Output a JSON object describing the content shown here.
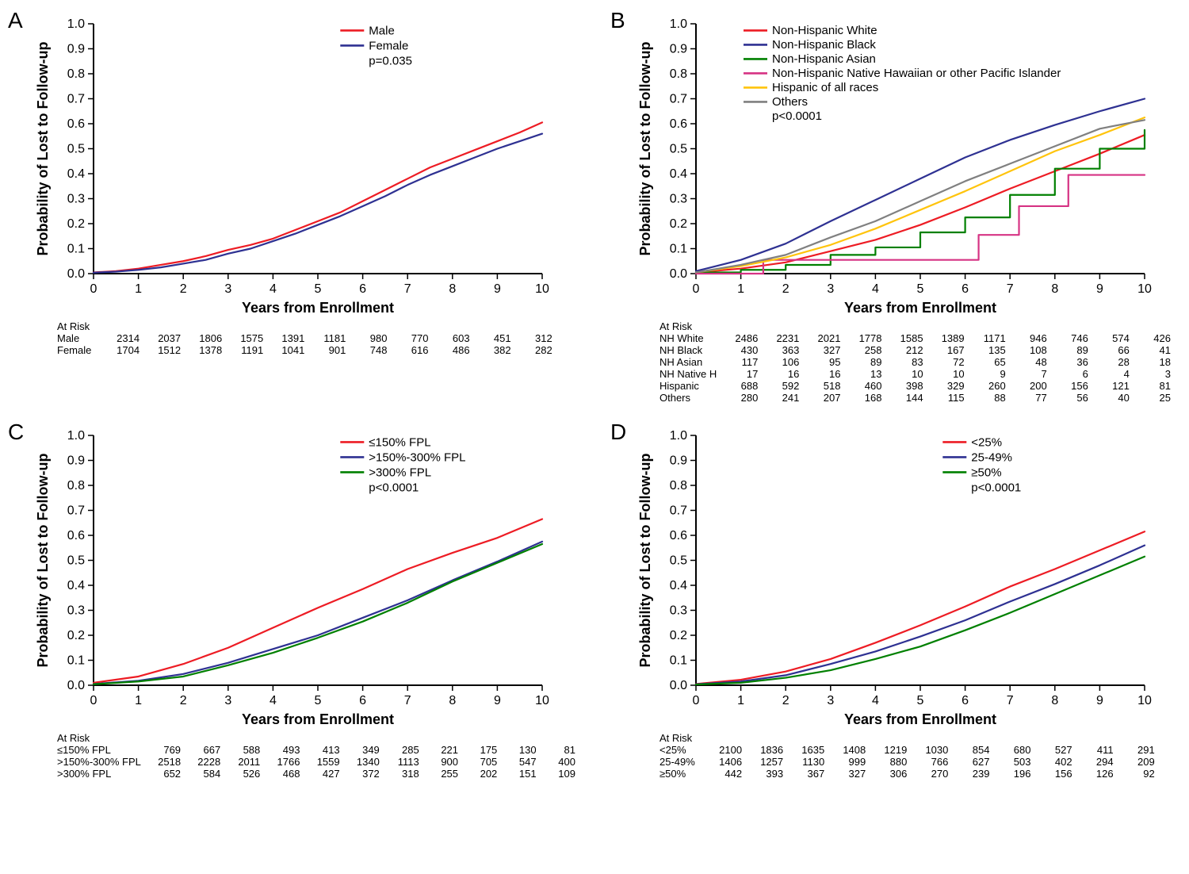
{
  "global": {
    "bg_color": "#ffffff",
    "axis_color": "#000000",
    "font": "Arial",
    "line_width": 2.2
  },
  "panels": [
    {
      "letter": "A",
      "type": "line",
      "xlabel": "Years from Enrollment",
      "ylabel": "Probability of Lost to Follow-up",
      "xlim": [
        0,
        10
      ],
      "ylim": [
        0,
        1.0
      ],
      "xtick_step": 1,
      "ytick_step": 0.1,
      "axis_fontsize": 18,
      "tick_fontsize": 16,
      "legend_fontsize": 15,
      "legend_pos": "top-right",
      "pvalue": "p=0.035",
      "series": [
        {
          "name": "Male",
          "color": "#ed1c24",
          "x": [
            0,
            0.5,
            1,
            1.5,
            2,
            2.5,
            3,
            3.5,
            4,
            4.5,
            5,
            5.5,
            6,
            6.5,
            7,
            7.5,
            8,
            8.5,
            9,
            9.5,
            10
          ],
          "y": [
            0.005,
            0.01,
            0.02,
            0.035,
            0.05,
            0.07,
            0.095,
            0.115,
            0.14,
            0.175,
            0.21,
            0.245,
            0.29,
            0.335,
            0.38,
            0.425,
            0.46,
            0.495,
            0.53,
            0.565,
            0.605
          ]
        },
        {
          "name": "Female",
          "color": "#2e3192",
          "x": [
            0,
            0.5,
            1,
            1.5,
            2,
            2.5,
            3,
            3.5,
            4,
            4.5,
            5,
            5.5,
            6,
            6.5,
            7,
            7.5,
            8,
            8.5,
            9,
            9.5,
            10
          ],
          "y": [
            0.004,
            0.008,
            0.015,
            0.025,
            0.04,
            0.055,
            0.08,
            0.1,
            0.13,
            0.16,
            0.195,
            0.23,
            0.27,
            0.31,
            0.355,
            0.395,
            0.43,
            0.465,
            0.5,
            0.53,
            0.56
          ]
        }
      ],
      "atrisk_title": "At Risk",
      "atrisk_x": [
        0,
        1,
        2,
        3,
        4,
        5,
        6,
        7,
        8,
        9,
        10
      ],
      "atrisk": [
        {
          "label": "Male",
          "values": [
            2314,
            2037,
            1806,
            1575,
            1391,
            1181,
            980,
            770,
            603,
            451,
            312
          ]
        },
        {
          "label": "Female",
          "values": [
            1704,
            1512,
            1378,
            1191,
            1041,
            901,
            748,
            616,
            486,
            382,
            282
          ]
        }
      ]
    },
    {
      "letter": "B",
      "type": "line-step",
      "xlabel": "Years from Enrollment",
      "ylabel": "Probability of Lost to Follow-up",
      "xlim": [
        0,
        10
      ],
      "ylim": [
        0,
        1.0
      ],
      "xtick_step": 1,
      "ytick_step": 0.1,
      "axis_fontsize": 18,
      "tick_fontsize": 16,
      "legend_fontsize": 14,
      "legend_pos": "top-right",
      "pvalue": "p<0.0001",
      "series": [
        {
          "name": "Non-Hispanic White",
          "color": "#ed1c24",
          "x": [
            0,
            1,
            2,
            3,
            4,
            5,
            6,
            7,
            8,
            9,
            10
          ],
          "y": [
            0.005,
            0.02,
            0.045,
            0.09,
            0.135,
            0.195,
            0.265,
            0.34,
            0.41,
            0.48,
            0.555
          ]
        },
        {
          "name": "Non-Hispanic Black",
          "color": "#2e3192",
          "x": [
            0,
            1,
            2,
            3,
            4,
            5,
            6,
            7,
            8,
            9,
            10
          ],
          "y": [
            0.01,
            0.055,
            0.12,
            0.21,
            0.295,
            0.38,
            0.465,
            0.535,
            0.595,
            0.65,
            0.7
          ]
        },
        {
          "name": "Non-Hispanic Asian",
          "color": "#008000",
          "x": [
            0,
            1,
            2,
            3,
            4,
            5,
            6,
            7,
            8,
            9,
            10
          ],
          "y": [
            0.005,
            0.015,
            0.035,
            0.075,
            0.105,
            0.165,
            0.225,
            0.315,
            0.42,
            0.5,
            0.575
          ],
          "step": true
        },
        {
          "name": "Non-Hispanic Native Hawaiian or other Pacific Islander",
          "color": "#d63384",
          "x": [
            0,
            1.5,
            4,
            6,
            6.3,
            7.2,
            8.3,
            10
          ],
          "y": [
            0,
            0.055,
            0.055,
            0.055,
            0.155,
            0.27,
            0.395,
            0.395
          ],
          "step": true
        },
        {
          "name": "Hispanic of all races",
          "color": "#ffc40c",
          "x": [
            0,
            1,
            2,
            3,
            4,
            5,
            6,
            7,
            8,
            9,
            10
          ],
          "y": [
            0.005,
            0.03,
            0.065,
            0.115,
            0.18,
            0.255,
            0.33,
            0.41,
            0.49,
            0.555,
            0.625
          ]
        },
        {
          "name": "Others",
          "color": "#808080",
          "x": [
            0,
            1,
            2,
            3,
            4,
            5,
            6,
            7,
            8,
            9,
            10
          ],
          "y": [
            0.005,
            0.035,
            0.075,
            0.145,
            0.21,
            0.29,
            0.37,
            0.44,
            0.51,
            0.58,
            0.615
          ]
        }
      ],
      "atrisk_title": "At Risk",
      "atrisk_x": [
        0,
        1,
        2,
        3,
        4,
        5,
        6,
        7,
        8,
        9,
        10
      ],
      "atrisk": [
        {
          "label": "NH White",
          "values": [
            2486,
            2231,
            2021,
            1778,
            1585,
            1389,
            1171,
            946,
            746,
            574,
            426
          ]
        },
        {
          "label": "NH Black",
          "values": [
            430,
            363,
            327,
            258,
            212,
            167,
            135,
            108,
            89,
            66,
            41
          ]
        },
        {
          "label": "NH Asian",
          "values": [
            117,
            106,
            95,
            89,
            83,
            72,
            65,
            48,
            36,
            28,
            18
          ]
        },
        {
          "label": "NH Native H",
          "values": [
            17,
            16,
            16,
            13,
            10,
            10,
            9,
            7,
            6,
            4,
            3
          ]
        },
        {
          "label": "Hispanic",
          "values": [
            688,
            592,
            518,
            460,
            398,
            329,
            260,
            200,
            156,
            121,
            81
          ]
        },
        {
          "label": "Others",
          "values": [
            280,
            241,
            207,
            168,
            144,
            115,
            88,
            77,
            56,
            40,
            25
          ]
        }
      ]
    },
    {
      "letter": "C",
      "type": "line",
      "xlabel": "Years from Enrollment",
      "ylabel": "Probability of Lost to Follow-up",
      "xlim": [
        0,
        10
      ],
      "ylim": [
        0,
        1.0
      ],
      "xtick_step": 1,
      "ytick_step": 0.1,
      "axis_fontsize": 18,
      "tick_fontsize": 16,
      "legend_fontsize": 15,
      "legend_pos": "top-right",
      "pvalue": "p<0.0001",
      "series": [
        {
          "name": "≤150% FPL",
          "color": "#ed1c24",
          "x": [
            0,
            1,
            2,
            3,
            4,
            5,
            6,
            7,
            8,
            9,
            10
          ],
          "y": [
            0.01,
            0.035,
            0.085,
            0.15,
            0.23,
            0.31,
            0.385,
            0.465,
            0.53,
            0.59,
            0.665
          ]
        },
        {
          "name": ">150%-300% FPL",
          "color": "#2e3192",
          "x": [
            0,
            1,
            2,
            3,
            4,
            5,
            6,
            7,
            8,
            9,
            10
          ],
          "y": [
            0.005,
            0.018,
            0.045,
            0.09,
            0.145,
            0.2,
            0.27,
            0.34,
            0.42,
            0.495,
            0.575
          ]
        },
        {
          "name": ">300% FPL",
          "color": "#008000",
          "x": [
            0,
            1,
            2,
            3,
            4,
            5,
            6,
            7,
            8,
            9,
            10
          ],
          "y": [
            0.004,
            0.015,
            0.035,
            0.08,
            0.13,
            0.19,
            0.255,
            0.33,
            0.415,
            0.49,
            0.565
          ]
        }
      ],
      "atrisk_title": "At Risk",
      "atrisk_x": [
        0,
        1,
        2,
        3,
        4,
        5,
        6,
        7,
        8,
        9,
        10
      ],
      "atrisk": [
        {
          "label": "≤150% FPL",
          "values": [
            769,
            667,
            588,
            493,
            413,
            349,
            285,
            221,
            175,
            130,
            81
          ]
        },
        {
          "label": ">150%-300% FPL",
          "values": [
            2518,
            2228,
            2011,
            1766,
            1559,
            1340,
            1113,
            900,
            705,
            547,
            400
          ]
        },
        {
          "label": ">300% FPL",
          "values": [
            652,
            584,
            526,
            468,
            427,
            372,
            318,
            255,
            202,
            151,
            109
          ]
        }
      ]
    },
    {
      "letter": "D",
      "type": "line",
      "xlabel": "Years from Enrollment",
      "ylabel": "Probability of Lost to Follow-up",
      "xlim": [
        0,
        10
      ],
      "ylim": [
        0,
        1.0
      ],
      "xtick_step": 1,
      "ytick_step": 0.1,
      "axis_fontsize": 18,
      "tick_fontsize": 16,
      "legend_fontsize": 15,
      "legend_pos": "top-right",
      "pvalue": "p<0.0001",
      "series": [
        {
          "name": "<25%",
          "color": "#ed1c24",
          "x": [
            0,
            1,
            2,
            3,
            4,
            5,
            6,
            7,
            8,
            9,
            10
          ],
          "y": [
            0.005,
            0.022,
            0.055,
            0.105,
            0.17,
            0.24,
            0.315,
            0.395,
            0.465,
            0.54,
            0.615
          ]
        },
        {
          "name": "25-49%",
          "color": "#2e3192",
          "x": [
            0,
            1,
            2,
            3,
            4,
            5,
            6,
            7,
            8,
            9,
            10
          ],
          "y": [
            0.004,
            0.015,
            0.04,
            0.085,
            0.135,
            0.195,
            0.26,
            0.335,
            0.405,
            0.48,
            0.56
          ]
        },
        {
          "name": "≥50%",
          "color": "#008000",
          "x": [
            0,
            1,
            2,
            3,
            4,
            5,
            6,
            7,
            8,
            9,
            10
          ],
          "y": [
            0.003,
            0.01,
            0.03,
            0.06,
            0.105,
            0.155,
            0.22,
            0.29,
            0.365,
            0.44,
            0.515
          ]
        }
      ],
      "atrisk_title": "At Risk",
      "atrisk_x": [
        0,
        1,
        2,
        3,
        4,
        5,
        6,
        7,
        8,
        9,
        10
      ],
      "atrisk": [
        {
          "label": "<25%",
          "values": [
            2100,
            1836,
            1635,
            1408,
            1219,
            1030,
            854,
            680,
            527,
            411,
            291
          ]
        },
        {
          "label": "25-49%",
          "values": [
            1406,
            1257,
            1130,
            999,
            880,
            766,
            627,
            503,
            402,
            294,
            209
          ]
        },
        {
          "label": "≥50%",
          "values": [
            442,
            393,
            367,
            327,
            306,
            270,
            239,
            196,
            156,
            126,
            92
          ]
        }
      ]
    }
  ]
}
